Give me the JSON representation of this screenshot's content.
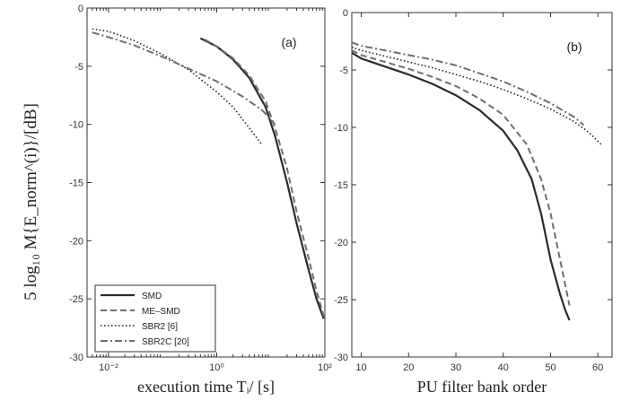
{
  "ylabel_shared": "5 log₁₀ M{E_norm^(i)}/[dB]",
  "chart_data": [
    {
      "type": "line",
      "panel_label": "(a)",
      "xlabel": "execution time Tᵢ/ [s]",
      "xscale": "log",
      "xlim": [
        0.004,
        100
      ],
      "ylim": [
        -30,
        0
      ],
      "xticks": [
        {
          "v": 0.01,
          "label": "10⁻²"
        },
        {
          "v": 1,
          "label": "10⁰"
        },
        {
          "v": 100,
          "label": "10²"
        }
      ],
      "yticks": [
        0,
        -5,
        -10,
        -15,
        -20,
        -25,
        -30
      ],
      "grid": false,
      "legend": {
        "placement": "bottom-left",
        "entries": [
          {
            "label": "SMD",
            "style": "solid"
          },
          {
            "label": "ME–SMD",
            "style": "dashed"
          },
          {
            "label": "SBR2 [6]",
            "style": "dotted"
          },
          {
            "label": "SBR2C [20]",
            "style": "dashdot"
          }
        ]
      },
      "series": [
        {
          "name": "SMD",
          "style": "solid",
          "x": [
            0.5,
            1,
            2,
            4,
            8,
            12,
            20,
            30,
            50,
            70,
            95
          ],
          "y": [
            -2.6,
            -3.3,
            -4.4,
            -6.0,
            -8.5,
            -11,
            -15,
            -18.5,
            -22.5,
            -25,
            -26.7
          ]
        },
        {
          "name": "ME–SMD",
          "style": "dashed",
          "x": [
            0.6,
            1,
            2,
            4,
            8,
            12,
            20,
            30,
            50,
            70,
            95
          ],
          "y": [
            -2.7,
            -3.3,
            -4.3,
            -5.8,
            -8.0,
            -10.3,
            -13.8,
            -17.5,
            -21.5,
            -24.3,
            -26.5
          ]
        },
        {
          "name": "SBR2 [6]",
          "style": "dotted",
          "x": [
            0.005,
            0.01,
            0.03,
            0.1,
            0.3,
            1,
            2,
            4,
            7
          ],
          "y": [
            -1.8,
            -2.0,
            -2.8,
            -4.0,
            -5.3,
            -7.2,
            -8.5,
            -10.3,
            -11.8
          ]
        },
        {
          "name": "SBR2C [20]",
          "style": "dashdot",
          "x": [
            0.005,
            0.01,
            0.03,
            0.1,
            0.3,
            1,
            3,
            7,
            12
          ],
          "y": [
            -2.1,
            -2.5,
            -3.2,
            -4.2,
            -5.2,
            -6.3,
            -7.6,
            -8.8,
            -10.0
          ]
        }
      ]
    },
    {
      "type": "line",
      "panel_label": "(b)",
      "xlabel": "PU filter bank order",
      "xscale": "linear",
      "xlim": [
        8,
        63
      ],
      "ylim": [
        -30,
        0
      ],
      "xticks": [
        {
          "v": 10,
          "label": "10"
        },
        {
          "v": 20,
          "label": "20"
        },
        {
          "v": 30,
          "label": "30"
        },
        {
          "v": 40,
          "label": "40"
        },
        {
          "v": 50,
          "label": "50"
        },
        {
          "v": 60,
          "label": "60"
        }
      ],
      "yticks": [
        0,
        -5,
        -10,
        -15,
        -20,
        -25,
        -30
      ],
      "grid": false,
      "series": [
        {
          "name": "SMD",
          "style": "solid",
          "x": [
            8,
            10,
            15,
            20,
            25,
            30,
            35,
            40,
            43,
            46,
            48,
            49,
            50,
            51,
            52,
            53,
            54
          ],
          "y": [
            -3.5,
            -4.0,
            -4.7,
            -5.4,
            -6.2,
            -7.2,
            -8.5,
            -10.3,
            -12.0,
            -14.5,
            -17.5,
            -19.5,
            -21.5,
            -23.0,
            -24.5,
            -25.8,
            -26.8
          ]
        },
        {
          "name": "ME–SMD",
          "style": "dashed",
          "x": [
            8,
            10,
            15,
            20,
            25,
            30,
            35,
            40,
            45,
            48,
            50,
            51,
            52,
            53,
            54
          ],
          "y": [
            -3.3,
            -3.7,
            -4.3,
            -4.9,
            -5.6,
            -6.4,
            -7.5,
            -8.9,
            -11.5,
            -14.5,
            -17.5,
            -19.5,
            -21.5,
            -23.5,
            -25.5
          ]
        },
        {
          "name": "SBR2 [6]",
          "style": "dotted",
          "x": [
            8,
            10,
            15,
            20,
            25,
            30,
            35,
            40,
            45,
            50,
            55,
            58,
            61
          ],
          "y": [
            -3.0,
            -3.3,
            -3.8,
            -4.3,
            -4.8,
            -5.4,
            -6.0,
            -6.7,
            -7.5,
            -8.4,
            -9.5,
            -10.4,
            -11.6
          ]
        },
        {
          "name": "SBR2C [20]",
          "style": "dashdot",
          "x": [
            8,
            10,
            15,
            20,
            25,
            30,
            35,
            40,
            45,
            50,
            55,
            57
          ],
          "y": [
            -2.6,
            -2.9,
            -3.3,
            -3.7,
            -4.1,
            -4.6,
            -5.3,
            -6.0,
            -6.9,
            -7.9,
            -9.1,
            -9.8
          ]
        }
      ]
    }
  ]
}
